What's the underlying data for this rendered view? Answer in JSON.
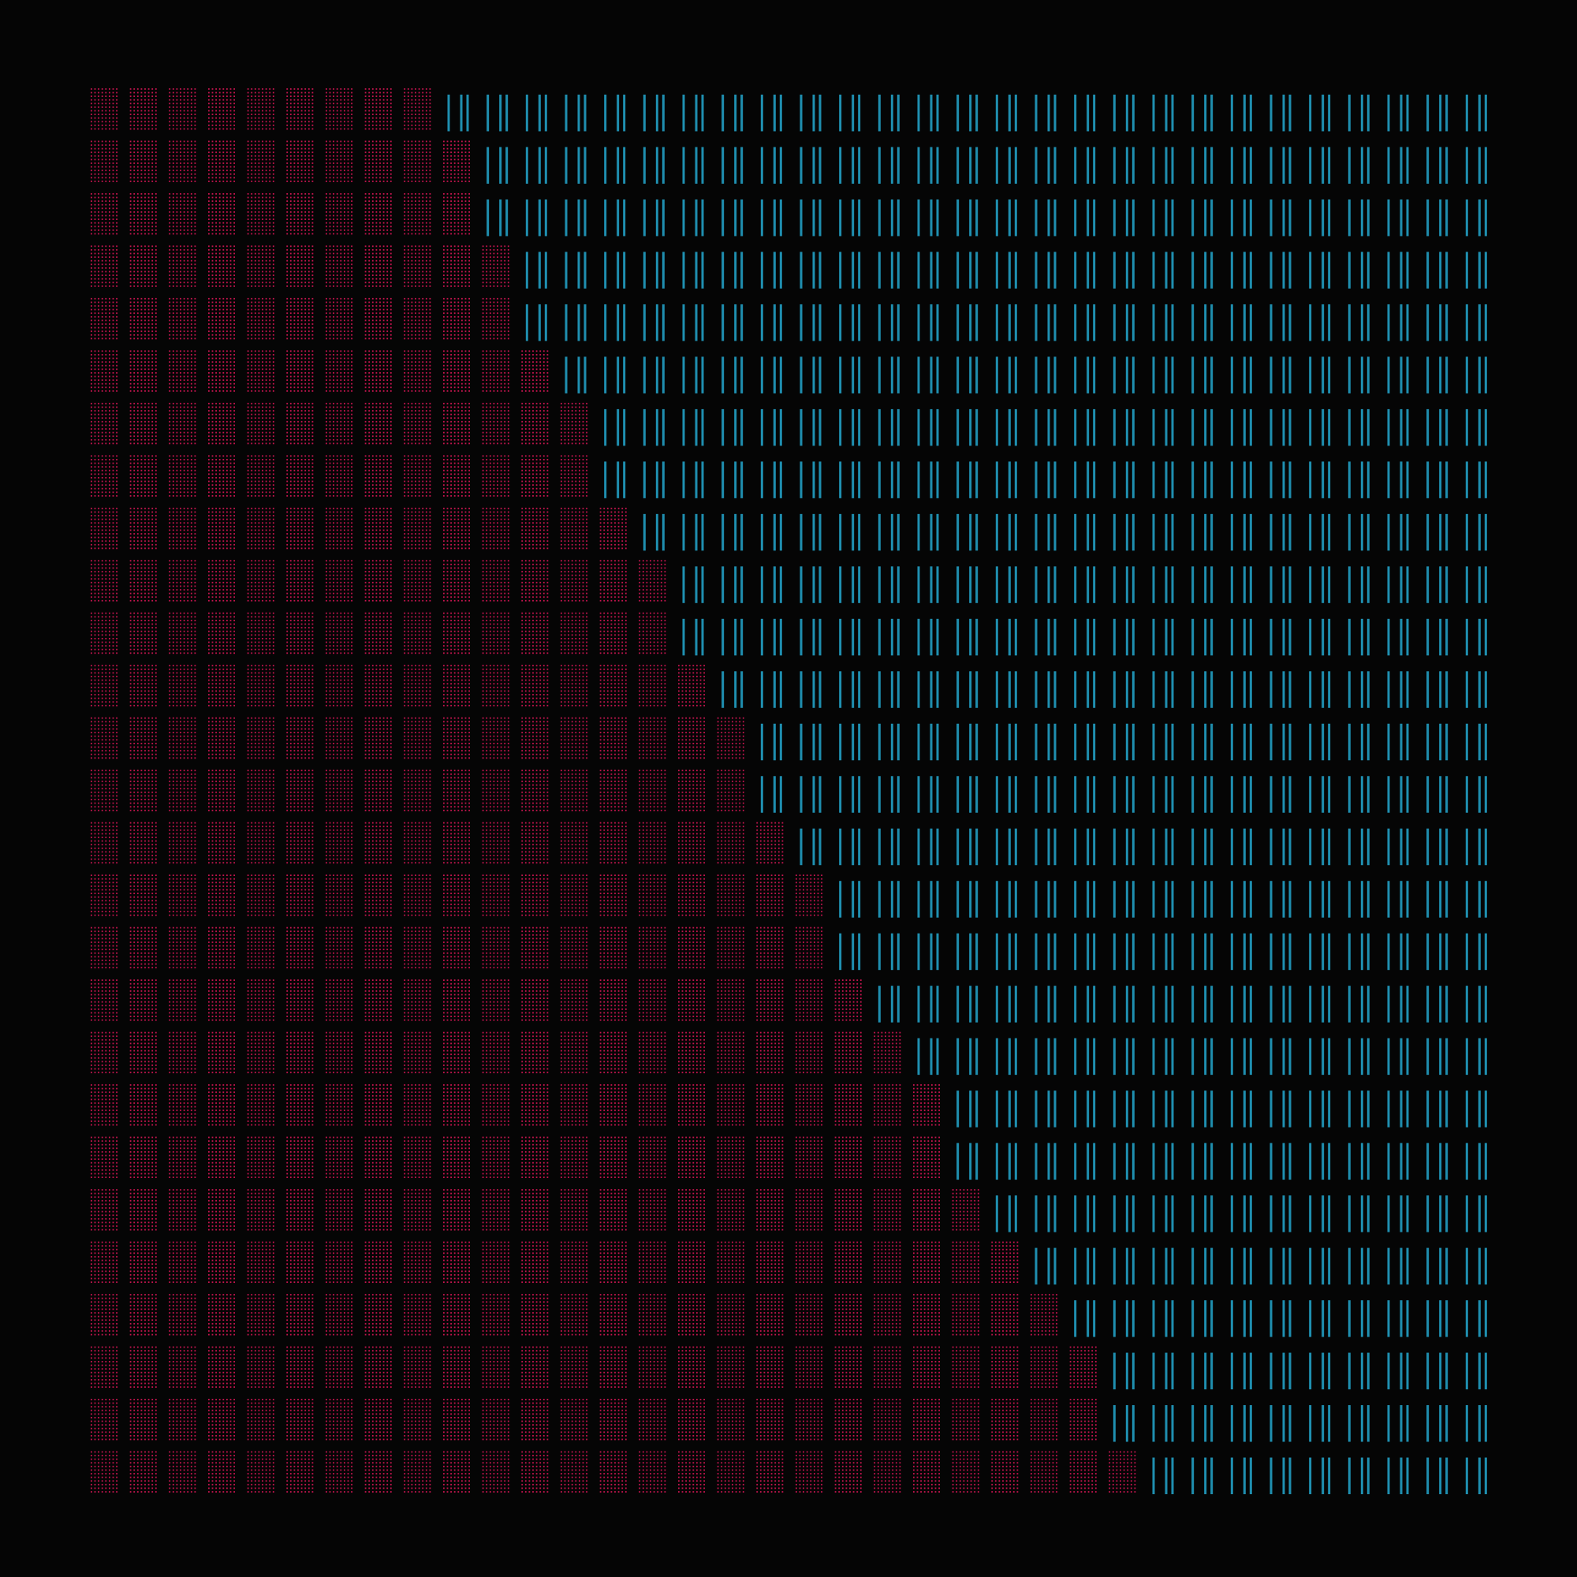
{
  "artwork": {
    "grid": {
      "cols": 36,
      "rows": 27
    },
    "background": "#050505",
    "palette": {
      "magenta_dots": {
        "color": "#c4154f",
        "glyph": "dotted-block"
      },
      "amber_dots": {
        "color": "#c7822a",
        "glyph": "dotted-block"
      },
      "teal_script": {
        "color": "#46b9c4",
        "glyph": "∭"
      },
      "green_cross": {
        "color": "#7ac043",
        "glyph": "╬"
      },
      "blue_bars": {
        "color": "#1f8fb0",
        "glyph": "||"
      }
    },
    "band_sequence": [
      "magenta_dots",
      "amber_dots",
      "teal_script",
      "green_cross",
      "blue_bars",
      "magenta_dots",
      "amber_dots",
      "teal_script",
      "green_cross",
      "blue_bars"
    ]
  }
}
